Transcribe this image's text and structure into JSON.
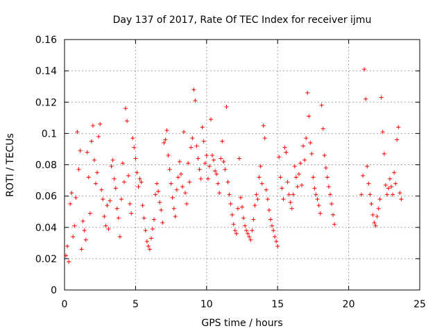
{
  "chart_data": {
    "type": "scatter",
    "title": "Day 137 of 2017, Rate Of TEC Index for receiver ijmu",
    "xlabel": "GPS time / hours",
    "ylabel": "ROTI / TECUs",
    "xlim": [
      0,
      25
    ],
    "ylim": [
      0,
      0.16
    ],
    "grid": true,
    "marker": "+",
    "series_color": "#ff0000",
    "x_ticks": [
      0,
      5,
      10,
      15,
      20,
      25
    ],
    "x_tick_labels": [
      "0",
      "5",
      "10",
      "15",
      "20",
      "25"
    ],
    "y_ticks": [
      0,
      0.02,
      0.04,
      0.06,
      0.08,
      0.1,
      0.12,
      0.14,
      0.16
    ],
    "y_tick_labels": [
      "0",
      "0.02",
      "0.04",
      "0.06",
      "0.08",
      "0.1",
      "0.12",
      "0.14",
      "0.16"
    ],
    "series": [
      {
        "name": "ROTI",
        "color": "#ff0000",
        "x": [
          0.1,
          0.2,
          0.3,
          0.4,
          0.5,
          0.6,
          0.7,
          0.8,
          0.9,
          1.0,
          1.1,
          1.2,
          1.3,
          1.4,
          1.5,
          1.6,
          1.7,
          1.8,
          1.9,
          2.0,
          2.1,
          2.2,
          2.3,
          2.4,
          2.5,
          2.6,
          2.7,
          2.8,
          2.9,
          3.0,
          3.1,
          3.2,
          3.3,
          3.4,
          3.5,
          3.6,
          3.7,
          3.8,
          3.9,
          4.0,
          4.1,
          4.2,
          4.3,
          4.4,
          4.5,
          4.6,
          4.7,
          4.8,
          4.9,
          5.0,
          5.1,
          5.2,
          5.3,
          5.4,
          5.5,
          5.6,
          5.7,
          5.8,
          5.9,
          6.0,
          6.1,
          6.2,
          6.3,
          6.4,
          6.5,
          6.6,
          6.7,
          6.8,
          6.9,
          7.0,
          7.1,
          7.2,
          7.3,
          7.4,
          7.5,
          7.6,
          7.7,
          7.8,
          7.9,
          8.0,
          8.1,
          8.2,
          8.3,
          8.4,
          8.5,
          8.6,
          8.7,
          8.8,
          8.9,
          9.0,
          9.1,
          9.2,
          9.3,
          9.4,
          9.5,
          9.6,
          9.7,
          9.8,
          9.9,
          10.0,
          10.1,
          10.2,
          10.3,
          10.4,
          10.5,
          10.6,
          10.7,
          10.8,
          10.9,
          11.0,
          11.1,
          11.2,
          11.3,
          11.4,
          11.5,
          11.6,
          11.7,
          11.8,
          11.9,
          12.0,
          12.1,
          12.2,
          12.3,
          12.4,
          12.5,
          12.6,
          12.7,
          12.8,
          12.9,
          13.0,
          13.1,
          13.2,
          13.3,
          13.4,
          13.5,
          13.6,
          13.7,
          13.8,
          13.9,
          14.0,
          14.1,
          14.2,
          14.3,
          14.4,
          14.5,
          14.6,
          14.7,
          14.8,
          14.9,
          15.0,
          15.1,
          15.2,
          15.3,
          15.4,
          15.5,
          15.6,
          15.7,
          15.8,
          15.9,
          16.0,
          16.1,
          16.2,
          16.3,
          16.4,
          16.5,
          16.6,
          16.7,
          16.8,
          16.9,
          17.0,
          17.1,
          17.2,
          17.3,
          17.4,
          17.5,
          17.6,
          17.7,
          17.8,
          17.9,
          18.0,
          18.1,
          18.2,
          18.3,
          18.4,
          18.5,
          18.6,
          18.7,
          18.8,
          18.9,
          19.0,
          20.9,
          21.0,
          21.1,
          21.2,
          21.3,
          21.4,
          21.5,
          21.6,
          21.7,
          21.8,
          21.9,
          22.0,
          22.1,
          22.2,
          22.3,
          22.4,
          22.5,
          22.6,
          22.7,
          22.8,
          22.9,
          23.0,
          23.1,
          23.2,
          23.3,
          23.4,
          23.5,
          23.6,
          23.7
        ],
        "y": [
          0.022,
          0.028,
          0.018,
          0.055,
          0.062,
          0.034,
          0.041,
          0.059,
          0.101,
          0.077,
          0.089,
          0.026,
          0.044,
          0.038,
          0.032,
          0.088,
          0.072,
          0.049,
          0.095,
          0.105,
          0.083,
          0.068,
          0.075,
          0.098,
          0.106,
          0.064,
          0.058,
          0.047,
          0.041,
          0.054,
          0.039,
          0.057,
          0.079,
          0.083,
          0.071,
          0.065,
          0.052,
          0.046,
          0.034,
          0.058,
          0.081,
          0.069,
          0.116,
          0.108,
          0.073,
          0.055,
          0.049,
          0.097,
          0.091,
          0.084,
          0.075,
          0.066,
          0.071,
          0.069,
          0.054,
          0.046,
          0.038,
          0.031,
          0.028,
          0.026,
          0.033,
          0.039,
          0.045,
          0.061,
          0.068,
          0.063,
          0.056,
          0.051,
          0.043,
          0.094,
          0.096,
          0.102,
          0.086,
          0.077,
          0.068,
          0.059,
          0.052,
          0.047,
          0.064,
          0.072,
          0.082,
          0.074,
          0.066,
          0.101,
          0.062,
          0.055,
          0.081,
          0.069,
          0.091,
          0.097,
          0.128,
          0.121,
          0.092,
          0.084,
          0.077,
          0.071,
          0.104,
          0.095,
          0.081,
          0.086,
          0.071,
          0.079,
          0.109,
          0.086,
          0.083,
          0.076,
          0.074,
          0.068,
          0.062,
          0.084,
          0.095,
          0.082,
          0.077,
          0.117,
          0.069,
          0.061,
          0.055,
          0.048,
          0.042,
          0.038,
          0.036,
          0.052,
          0.084,
          0.059,
          0.053,
          0.046,
          0.041,
          0.038,
          0.036,
          0.034,
          0.032,
          0.038,
          0.045,
          0.054,
          0.061,
          0.058,
          0.072,
          0.079,
          0.068,
          0.105,
          0.097,
          0.064,
          0.058,
          0.051,
          0.045,
          0.041,
          0.038,
          0.034,
          0.031,
          0.028,
          0.085,
          0.072,
          0.065,
          0.058,
          0.091,
          0.088,
          0.069,
          0.061,
          0.056,
          0.052,
          0.061,
          0.079,
          0.072,
          0.066,
          0.074,
          0.081,
          0.067,
          0.092,
          0.083,
          0.097,
          0.126,
          0.111,
          0.094,
          0.087,
          0.072,
          0.065,
          0.061,
          0.058,
          0.054,
          0.049,
          0.118,
          0.103,
          0.086,
          0.078,
          0.072,
          0.066,
          0.061,
          0.055,
          0.048,
          0.042,
          0.061,
          0.073,
          0.141,
          0.122,
          0.079,
          0.068,
          0.061,
          0.055,
          0.048,
          0.043,
          0.041,
          0.047,
          0.052,
          0.058,
          0.123,
          0.101,
          0.087,
          0.067,
          0.061,
          0.065,
          0.071,
          0.066,
          0.061,
          0.075,
          0.068,
          0.096,
          0.104,
          0.062,
          0.058
        ]
      }
    ]
  }
}
